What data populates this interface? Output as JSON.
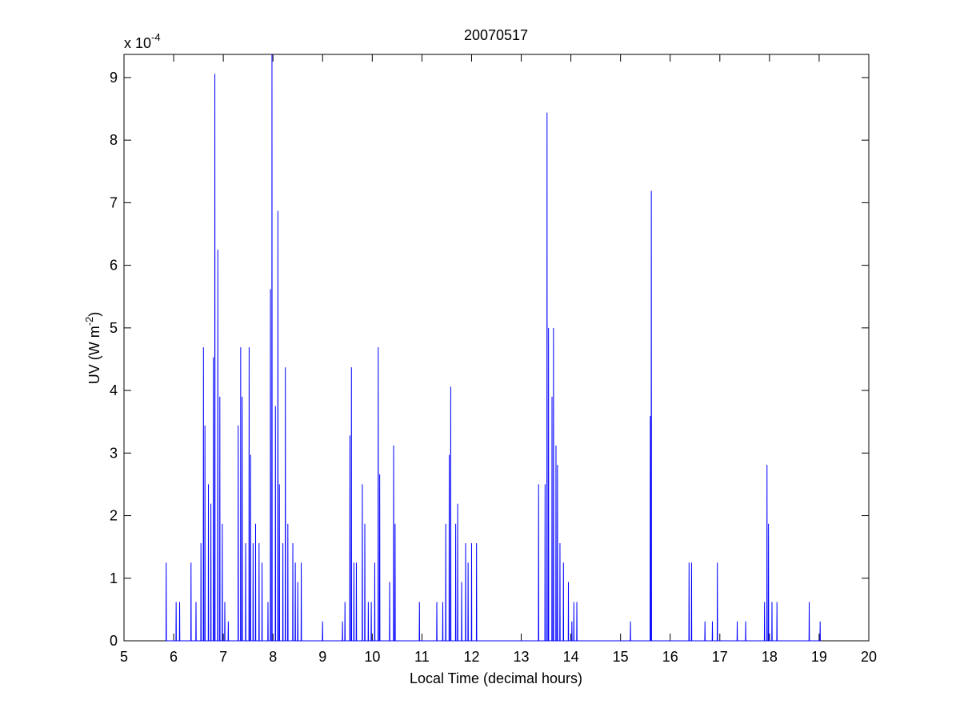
{
  "chart_data": {
    "type": "line",
    "title": "20070517",
    "xlabel": "Local Time (decimal hours)",
    "ylabel": {
      "text": "UV (W m",
      "superscript": "-2",
      "suffix": ")"
    },
    "y_multiplier": {
      "text": "x 10",
      "exponent": "-4"
    },
    "xlim": [
      5,
      20
    ],
    "xticks": [
      5,
      6,
      7,
      8,
      9,
      10,
      11,
      12,
      13,
      14,
      15,
      16,
      17,
      18,
      19,
      20
    ],
    "ylim": [
      0,
      9.37
    ],
    "yticks": [
      0,
      1,
      2,
      3,
      4,
      5,
      6,
      7,
      8,
      9
    ],
    "grid": false,
    "series": [
      {
        "color": "#0000ff",
        "x": [
          5.846,
          5.85,
          5.854,
          6.046,
          6.05,
          6.054,
          6.116,
          6.12,
          6.124,
          6.346,
          6.35,
          6.354,
          6.446,
          6.45,
          6.454,
          6.546,
          6.55,
          6.554,
          6.596,
          6.6,
          6.604,
          6.626,
          6.63,
          6.634,
          6.696,
          6.7,
          6.704,
          6.746,
          6.75,
          6.754,
          6.796,
          6.8,
          6.804,
          6.826,
          6.83,
          6.834,
          6.886,
          6.89,
          6.894,
          6.926,
          6.93,
          6.934,
          6.976,
          6.98,
          6.984,
          7.026,
          7.03,
          7.034,
          7.096,
          7.1,
          7.104,
          7.296,
          7.3,
          7.304,
          7.346,
          7.35,
          7.354,
          7.376,
          7.38,
          7.384,
          7.446,
          7.45,
          7.454,
          7.516,
          7.52,
          7.524,
          7.546,
          7.55,
          7.554,
          7.596,
          7.6,
          7.604,
          7.646,
          7.65,
          7.654,
          7.716,
          7.72,
          7.724,
          7.776,
          7.78,
          7.784,
          7.896,
          7.9,
          7.904,
          7.946,
          7.95,
          7.954,
          7.976,
          7.98,
          7.984,
          8.046,
          8.05,
          8.054,
          8.096,
          8.1,
          8.104,
          8.126,
          8.13,
          8.134,
          8.196,
          8.2,
          8.204,
          8.246,
          8.25,
          8.254,
          8.296,
          8.3,
          8.304,
          8.396,
          8.4,
          8.404,
          8.446,
          8.45,
          8.454,
          8.496,
          8.5,
          8.504,
          8.566,
          8.57,
          8.574,
          8.996,
          9,
          9.004,
          9.396,
          9.4,
          9.404,
          9.446,
          9.45,
          9.454,
          9.546,
          9.55,
          9.554,
          9.576,
          9.58,
          9.584,
          9.626,
          9.63,
          9.634,
          9.676,
          9.68,
          9.684,
          9.796,
          9.8,
          9.804,
          9.846,
          9.85,
          9.854,
          9.916,
          9.92,
          9.924,
          9.976,
          9.98,
          9.984,
          10.046,
          10.05,
          10.054,
          10.116,
          10.12,
          10.124,
          10.146,
          10.15,
          10.154,
          10.346,
          10.35,
          10.354,
          10.426,
          10.43,
          10.434,
          10.456,
          10.46,
          10.464,
          10.946,
          10.95,
          10.954,
          11.296,
          11.3,
          11.304,
          11.416,
          11.42,
          11.424,
          11.476,
          11.48,
          11.484,
          11.546,
          11.55,
          11.554,
          11.576,
          11.58,
          11.584,
          11.676,
          11.68,
          11.684,
          11.716,
          11.72,
          11.724,
          11.796,
          11.8,
          11.804,
          11.876,
          11.88,
          11.884,
          11.926,
          11.93,
          11.934,
          11.996,
          12,
          12.004,
          12.096,
          12.1,
          12.104,
          13.346,
          13.35,
          13.354,
          13.476,
          13.48,
          13.484,
          13.516,
          13.52,
          13.524,
          13.546,
          13.55,
          13.554,
          13.616,
          13.62,
          13.624,
          13.646,
          13.65,
          13.654,
          13.696,
          13.7,
          13.704,
          13.726,
          13.73,
          13.734,
          13.776,
          13.78,
          13.784,
          13.846,
          13.85,
          13.854,
          13.946,
          13.95,
          13.954,
          14.016,
          14.02,
          14.024,
          14.056,
          14.06,
          14.064,
          14.116,
          14.12,
          14.124,
          15.196,
          15.2,
          15.204,
          15.596,
          15.6,
          15.604,
          15.616,
          15.62,
          15.624,
          16.376,
          16.38,
          16.384,
          16.426,
          16.43,
          16.434,
          16.696,
          16.7,
          16.704,
          16.846,
          16.85,
          16.854,
          16.946,
          16.95,
          16.954,
          17.346,
          17.35,
          17.354,
          17.516,
          17.52,
          17.524,
          17.896,
          17.9,
          17.904,
          17.946,
          17.95,
          17.954,
          17.976,
          17.98,
          17.984,
          18.046,
          18.05,
          18.054,
          18.146,
          18.15,
          18.154,
          18.796,
          18.8,
          18.804,
          19.016,
          19.02,
          19.024
        ],
        "values": [
          0,
          1.25,
          0,
          0,
          0.62,
          0,
          0,
          0.62,
          0,
          0,
          1.25,
          0,
          0,
          0.62,
          0,
          0,
          1.56,
          0,
          0,
          4.69,
          0,
          0,
          3.44,
          0,
          0,
          2.5,
          0,
          0,
          2.19,
          0,
          0,
          4.53,
          0,
          0,
          9.06,
          0,
          0,
          6.25,
          0,
          0,
          3.9,
          0,
          0,
          1.87,
          0,
          0,
          0.62,
          0,
          0,
          0.31,
          0,
          0,
          3.44,
          0,
          0,
          4.69,
          0,
          0,
          3.9,
          0,
          0,
          1.56,
          0,
          0,
          4.69,
          0,
          0,
          2.97,
          0,
          0,
          1.56,
          0,
          0,
          1.87,
          0,
          0,
          1.56,
          0,
          0,
          1.25,
          0,
          0,
          0.62,
          0,
          0,
          5.62,
          0,
          0,
          9.37,
          0,
          0,
          3.75,
          0,
          0,
          6.87,
          0,
          0,
          2.5,
          0,
          0,
          1.56,
          0,
          0,
          4.37,
          0,
          0,
          1.87,
          0,
          0,
          1.56,
          0,
          0,
          1.25,
          0,
          0,
          0.94,
          0,
          0,
          1.25,
          0,
          0,
          0.31,
          0,
          0,
          0.31,
          0,
          0,
          0.62,
          0,
          0,
          3.28,
          0,
          0,
          4.37,
          0,
          0,
          1.25,
          0,
          0,
          1.25,
          0,
          0,
          2.5,
          0,
          0,
          1.87,
          0,
          0,
          0.62,
          0,
          0,
          0.62,
          0,
          0,
          1.25,
          0,
          0,
          4.69,
          0,
          0,
          2.66,
          0,
          0,
          0.94,
          0,
          0,
          3.12,
          0,
          0,
          1.87,
          0,
          0,
          0.62,
          0,
          0,
          0.62,
          0,
          0,
          0.62,
          0,
          0,
          1.87,
          0,
          0,
          2.97,
          0,
          0,
          4.06,
          0,
          0,
          1.87,
          0,
          0,
          2.19,
          0,
          0,
          0.94,
          0,
          0,
          1.56,
          0,
          0,
          1.25,
          0,
          0,
          1.56,
          0,
          0,
          1.56,
          0,
          0,
          2.5,
          0,
          0,
          2.5,
          0,
          0,
          8.44,
          0,
          0,
          5.0,
          0,
          0,
          3.9,
          0,
          0,
          5.0,
          0,
          0,
          3.12,
          0,
          0,
          2.81,
          0,
          0,
          1.56,
          0,
          0,
          1.25,
          0,
          0,
          0.94,
          0,
          0,
          0.31,
          0,
          0,
          0.62,
          0,
          0,
          0.62,
          0,
          0,
          0.31,
          0,
          0,
          3.59,
          0,
          0,
          7.19,
          0,
          0,
          1.25,
          0,
          0,
          1.25,
          0,
          0,
          0.31,
          0,
          0,
          0.31,
          0,
          0,
          1.25,
          0,
          0,
          0.31,
          0,
          0,
          0.31,
          0,
          0,
          0.62,
          0,
          0,
          2.81,
          0,
          0,
          1.87,
          0,
          0,
          0.62,
          0,
          0,
          0.62,
          0,
          0,
          0.62,
          0,
          0,
          0.31,
          0
        ]
      }
    ]
  }
}
